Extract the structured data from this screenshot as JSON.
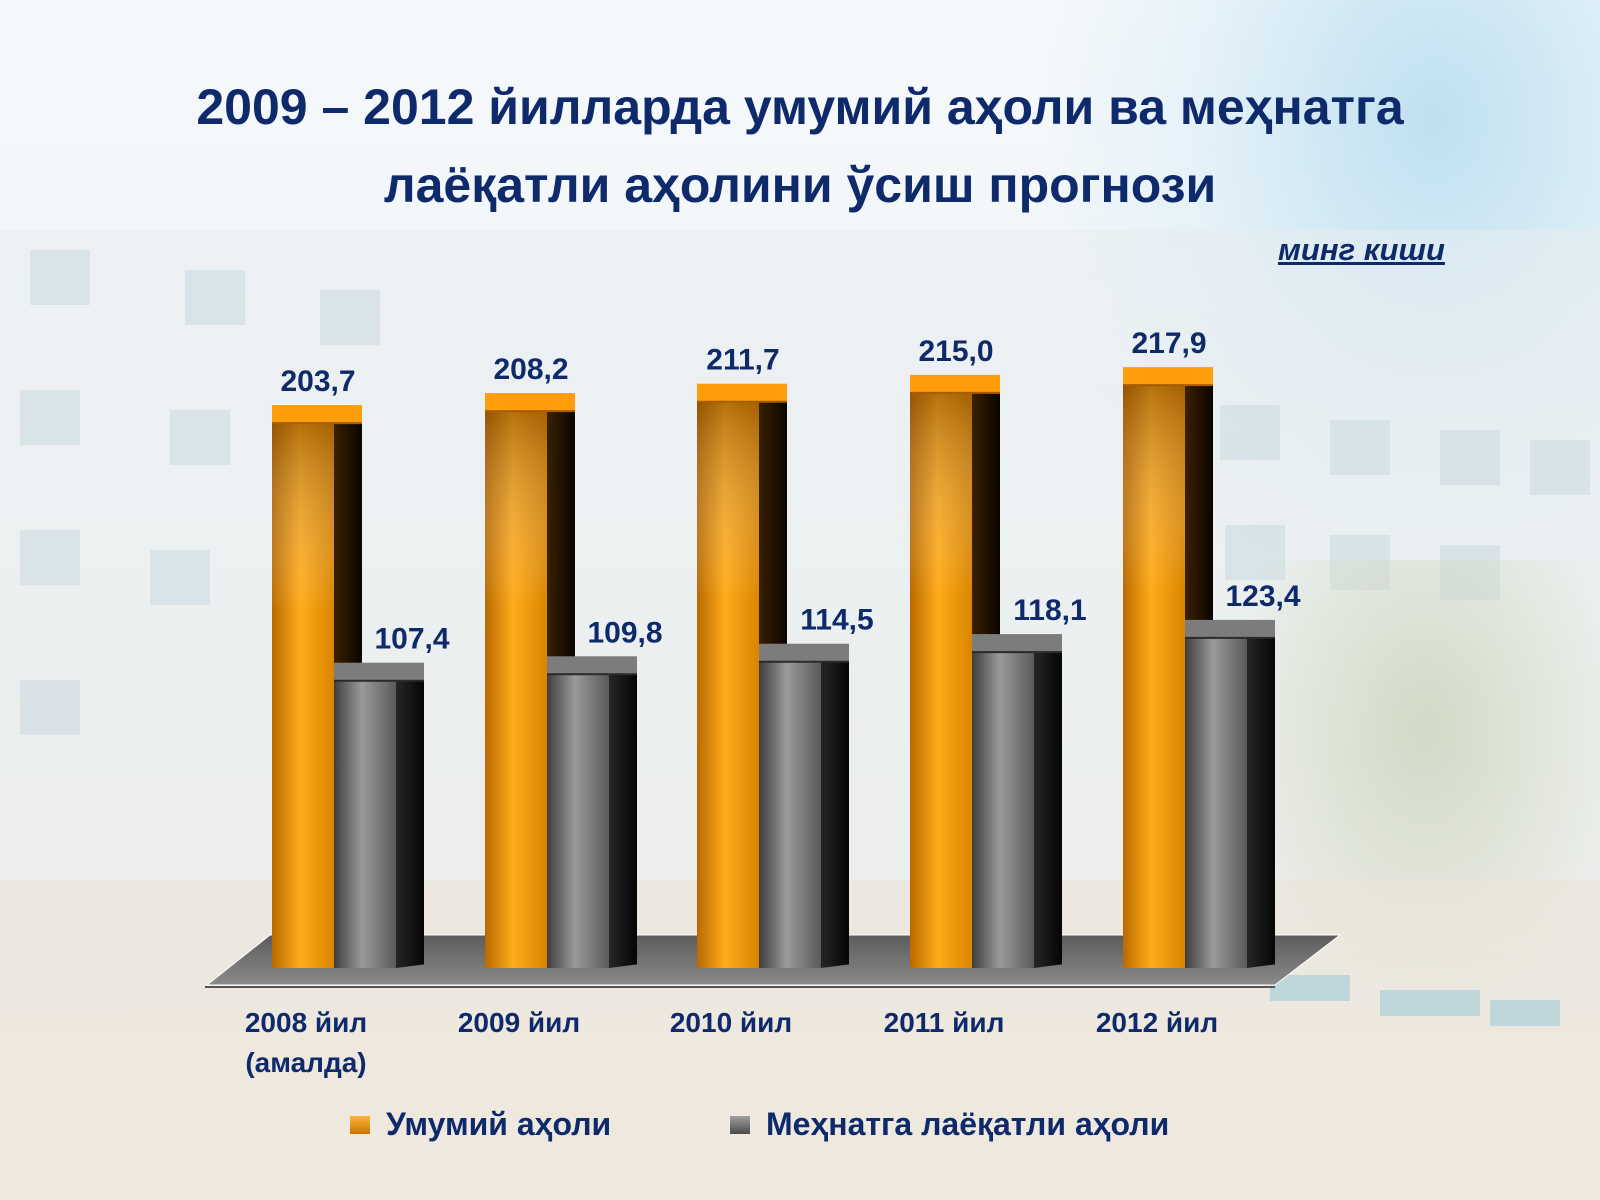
{
  "title_line1": "2009 – 2012 йилларда умумий аҳоли ва меҳнатга",
  "title_line2": "лаёқатли аҳолини ўсиш прогнози",
  "unit_label": "минг киши",
  "colors": {
    "series1": "#f7a11a",
    "series2": "#6e6e6e",
    "text": "#0e2a6b",
    "floor": "#6f6f6f"
  },
  "chart_data": {
    "type": "bar",
    "title": "2009 – 2012 йилларда умумий аҳоли ва меҳнатга лаёқатли аҳолини ўсиш прогнози",
    "categories": [
      "2008 йил\n(амалда)",
      "2009 йил",
      "2010 йил",
      "2011 йил",
      "2012 йил"
    ],
    "series": [
      {
        "name": "Умумий аҳоли",
        "values": [
          203.7,
          208.2,
          211.7,
          215.0,
          217.9
        ],
        "labels": [
          "203,7",
          "208,2",
          "211,7",
          "215,0",
          "217,9"
        ]
      },
      {
        "name": "Меҳнатга лаёқатли аҳоли",
        "values": [
          107.4,
          109.8,
          114.5,
          118.1,
          123.4
        ],
        "labels": [
          "107,4",
          "109,8",
          "114,5",
          "118,1",
          "123,4"
        ]
      }
    ],
    "ylabel": "минг киши",
    "xlabel": "",
    "ylim": [
      0,
      240
    ],
    "grid": false,
    "legend": "bottom",
    "style": "3d"
  }
}
